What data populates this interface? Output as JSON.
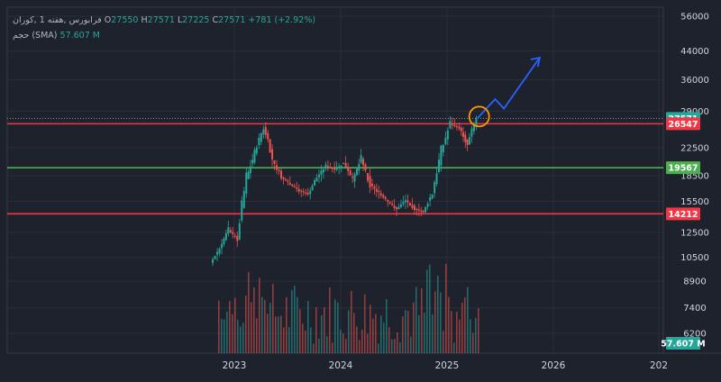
{
  "legend": {
    "symbol": "فرابورس ,هفته 1 ,کوران",
    "open_label": "O",
    "open": "27550",
    "high_label": "H",
    "high": "27571",
    "low_label": "L",
    "low": "27225",
    "close_label": "C",
    "close": "27571",
    "change": "+781 (+2.92%)",
    "volume_label": "حجم (SMA)",
    "volume_value": "57.607 M"
  },
  "colors": {
    "background": "#1e222d",
    "up": "#26a69a",
    "down": "#ef5350",
    "resistance": "#f23645",
    "support": "#4caf50",
    "projection": "#2962ff",
    "highlight_circle": "#ff9800",
    "axis_text": "#d1d4dc"
  },
  "chart_data": {
    "type": "candlestick",
    "x_axis": {
      "ticks": [
        "2023",
        "2024",
        "2025",
        "2026",
        "202"
      ]
    },
    "y_axis": {
      "scale": "log",
      "ticks": [
        "56000",
        "44000",
        "36000",
        "29000",
        "22500",
        "18500",
        "15500",
        "12500",
        "10500",
        "8900",
        "7400",
        "6200"
      ]
    },
    "price_markers": [
      {
        "value": "27571",
        "kind": "last-price",
        "color": "#26a69a"
      },
      {
        "value": "26547",
        "kind": "resistance",
        "color": "#f23645"
      },
      {
        "value": "19567",
        "kind": "support",
        "color": "#4caf50"
      },
      {
        "value": "14212",
        "kind": "support",
        "color": "#f23645"
      },
      {
        "value": "57.607 M",
        "kind": "volume",
        "color": "#26a69a"
      }
    ],
    "horizontal_lines": [
      {
        "value": 26547,
        "color": "#f23645"
      },
      {
        "value": 19567,
        "color": "#4caf50"
      },
      {
        "value": 14212,
        "color": "#f23645"
      }
    ],
    "series": [
      {
        "x": "2022-10",
        "y": 10100
      },
      {
        "x": "2022-11",
        "y": 11200
      },
      {
        "x": "2022-12",
        "y": 12700
      },
      {
        "x": "2023-01",
        "y": 11900
      },
      {
        "x": "2023-02",
        "y": 18100
      },
      {
        "x": "2023-03",
        "y": 21600
      },
      {
        "x": "2023-04",
        "y": 26000
      },
      {
        "x": "2023-05",
        "y": 20600
      },
      {
        "x": "2023-06",
        "y": 18300
      },
      {
        "x": "2023-07",
        "y": 17400
      },
      {
        "x": "2023-08",
        "y": 16700
      },
      {
        "x": "2023-09",
        "y": 16300
      },
      {
        "x": "2023-10",
        "y": 18300
      },
      {
        "x": "2023-11",
        "y": 19800
      },
      {
        "x": "2023-12",
        "y": 19300
      },
      {
        "x": "2024-01",
        "y": 20200
      },
      {
        "x": "2024-02",
        "y": 17800
      },
      {
        "x": "2024-03",
        "y": 20800
      },
      {
        "x": "2024-04",
        "y": 17500
      },
      {
        "x": "2024-05",
        "y": 16400
      },
      {
        "x": "2024-06",
        "y": 15400
      },
      {
        "x": "2024-07",
        "y": 14700
      },
      {
        "x": "2024-08",
        "y": 15600
      },
      {
        "x": "2024-09",
        "y": 14700
      },
      {
        "x": "2024-10",
        "y": 14400
      },
      {
        "x": "2024-11",
        "y": 16400
      },
      {
        "x": "2024-12",
        "y": 21800
      },
      {
        "x": "2025-01",
        "y": 26500
      },
      {
        "x": "2025-02",
        "y": 25800
      },
      {
        "x": "2025-03",
        "y": 23000
      },
      {
        "x": "2025-04",
        "y": 27571
      }
    ],
    "projection_path": [
      {
        "x": "2025-04",
        "y": 27571
      },
      {
        "x": "2025-06",
        "y": 31500
      },
      {
        "x": "2025-07",
        "y": 29500
      },
      {
        "x": "2025-11",
        "y": 42000
      }
    ],
    "grid": true
  }
}
